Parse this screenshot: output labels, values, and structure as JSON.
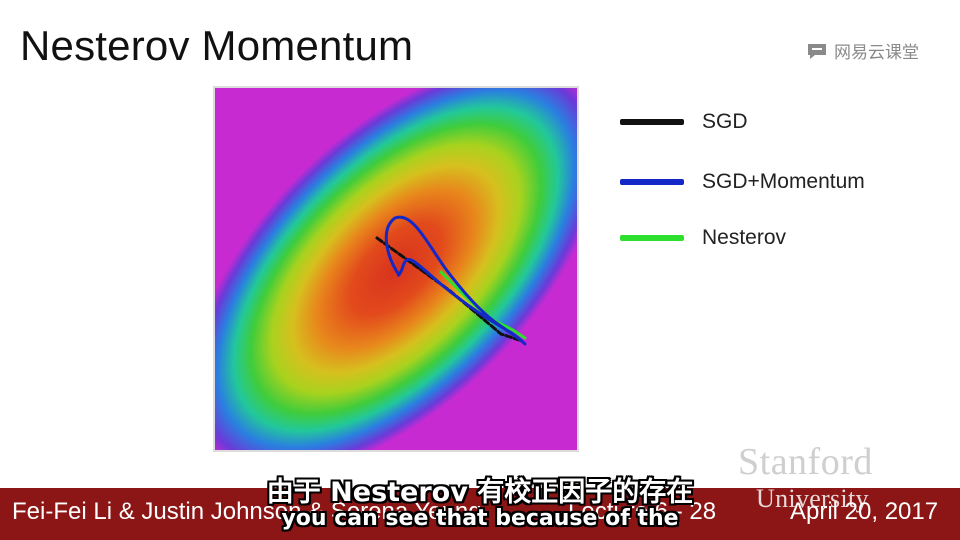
{
  "slide": {
    "title": "Nesterov Momentum"
  },
  "watermark": {
    "text": "网易云课堂",
    "icon": "chat-bubble-icon"
  },
  "legend": {
    "items": [
      {
        "label": "SGD",
        "color": "#111111"
      },
      {
        "label": "SGD+Momentum",
        "color": "#1428c8"
      },
      {
        "label": "Nesterov",
        "color": "#2ee02e"
      }
    ]
  },
  "branding": {
    "stanford": "Stanford",
    "university": "University"
  },
  "footer": {
    "authors": "Fei-Fei Li & Justin Johnson & Serena Yeung",
    "lecture": "Lecture 6 - 28",
    "date": "April 20, 2017",
    "bar_color": "#8c1515"
  },
  "subtitles": {
    "zh": "由于 Nesterov 有校正因子的存在",
    "en": "you can see that because of the"
  }
}
